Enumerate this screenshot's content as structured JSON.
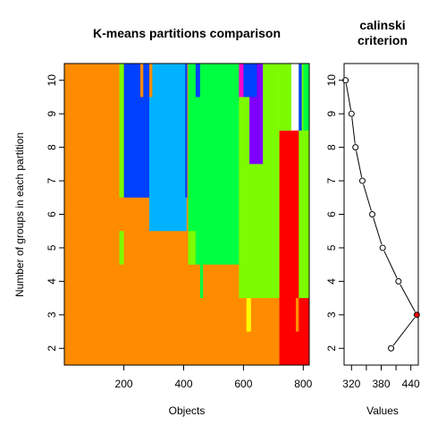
{
  "chart_data": [
    {
      "type": "heatmap",
      "title": "K-means partitions comparison",
      "xlabel": "Objects",
      "ylabel": "Number of groups in each partition",
      "xlim": [
        1,
        820
      ],
      "ylim": [
        1.5,
        10.5
      ],
      "x_ticks": [
        200,
        400,
        600,
        800
      ],
      "y_ticks": [
        2,
        3,
        4,
        5,
        6,
        7,
        8,
        9,
        10
      ],
      "legend": "none",
      "colors": {
        "orange": "#ff8c00",
        "red": "#ff0000",
        "lime": "#7cfc00",
        "green": "#00ff40",
        "sky": "#00b2ff",
        "blue": "#0040ff",
        "violet": "#8000ff",
        "magenta": "#ff00cc",
        "yellow": "#ffff00"
      },
      "segments": [
        {
          "x": [
            1,
            720
          ],
          "k": [
            1.5,
            10.5
          ],
          "color": "orange"
        },
        {
          "x": [
            720,
            820
          ],
          "k": [
            1.5,
            8.5
          ],
          "color": "red"
        },
        {
          "x": [
            720,
            760
          ],
          "k": [
            8.5,
            10.5
          ],
          "color": "lime"
        },
        {
          "x": [
            760,
            785
          ],
          "k": [
            1.5,
            3.5
          ],
          "color": "red"
        },
        {
          "x": [
            775,
            785
          ],
          "k": [
            2.5,
            3.5
          ],
          "color": "orange"
        },
        {
          "x": [
            785,
            820
          ],
          "k": [
            3.5,
            10.5
          ],
          "color": "lime"
        },
        {
          "x": [
            800,
            820
          ],
          "k": [
            8.5,
            10.5
          ],
          "color": "green"
        },
        {
          "x": [
            785,
            795
          ],
          "k": [
            8.5,
            10.5
          ],
          "color": "blue"
        },
        {
          "x": [
            585,
            720
          ],
          "k": [
            3.5,
            10.5
          ],
          "color": "lime"
        },
        {
          "x": [
            610,
            625
          ],
          "k": [
            2.5,
            3.5
          ],
          "color": "yellow"
        },
        {
          "x": [
            575,
            615
          ],
          "k": [
            9.5,
            10.5
          ],
          "color": "magenta"
        },
        {
          "x": [
            620,
            665
          ],
          "k": [
            7.5,
            10.5
          ],
          "color": "violet"
        },
        {
          "x": [
            600,
            645
          ],
          "k": [
            9.5,
            10.5
          ],
          "color": "blue"
        },
        {
          "x": [
            415,
            585
          ],
          "k": [
            4.5,
            10.5
          ],
          "color": "green"
        },
        {
          "x": [
            455,
            465
          ],
          "k": [
            3.5,
            10.5
          ],
          "color": "green"
        },
        {
          "x": [
            415,
            440
          ],
          "k": [
            4.5,
            5.5
          ],
          "color": "lime"
        },
        {
          "x": [
            440,
            455
          ],
          "k": [
            9.5,
            10.5
          ],
          "color": "blue"
        },
        {
          "x": [
            285,
            410
          ],
          "k": [
            5.5,
            10.5
          ],
          "color": "sky"
        },
        {
          "x": [
            405,
            412
          ],
          "k": [
            6.5,
            10.5
          ],
          "color": "blue"
        },
        {
          "x": [
            200,
            285
          ],
          "k": [
            6.5,
            10.5
          ],
          "color": "blue"
        },
        {
          "x": [
            285,
            295
          ],
          "k": [
            9.5,
            10.5
          ],
          "color": "orange"
        },
        {
          "x": [
            185,
            200
          ],
          "k": [
            6.5,
            10.5
          ],
          "color": "lime"
        },
        {
          "x": [
            185,
            200
          ],
          "k": [
            4.5,
            5.5
          ],
          "color": "lime"
        },
        {
          "x": [
            255,
            265
          ],
          "k": [
            9.5,
            10.5
          ],
          "color": "orange"
        }
      ]
    },
    {
      "type": "line",
      "title": "calinski criterion",
      "xlabel": "Values",
      "ylabel": "",
      "xlim": [
        305,
        455
      ],
      "ylim": [
        1.5,
        10.5
      ],
      "x_ticks": [
        320,
        380,
        440
      ],
      "y_ticks": [
        2,
        3,
        4,
        5,
        6,
        7,
        8,
        9,
        10
      ],
      "grid": false,
      "legend": "none",
      "series": [
        {
          "points": [
            {
              "x": 400,
              "y": 2
            },
            {
              "x": 452,
              "y": 3
            },
            {
              "x": 415,
              "y": 4
            },
            {
              "x": 383,
              "y": 5
            },
            {
              "x": 362,
              "y": 6
            },
            {
              "x": 342,
              "y": 7
            },
            {
              "x": 328,
              "y": 8
            },
            {
              "x": 320,
              "y": 9
            },
            {
              "x": 308,
              "y": 10
            }
          ]
        }
      ],
      "highlight": {
        "x": 452,
        "y": 3,
        "color": "#ff0000"
      }
    }
  ]
}
